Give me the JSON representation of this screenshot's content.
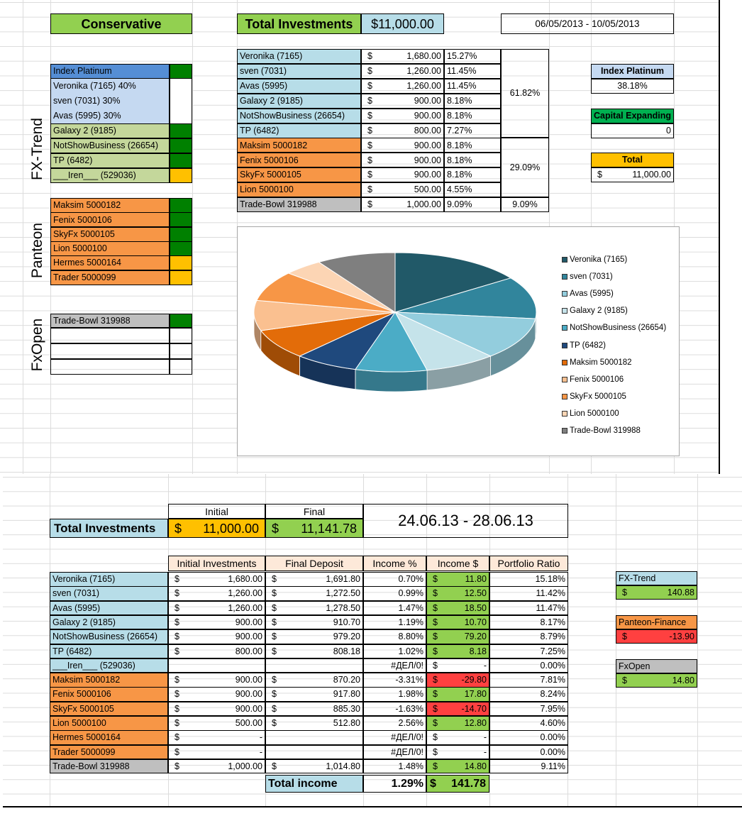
{
  "top": {
    "strategy": "Conservative",
    "total_label": "Total Investments",
    "total_value": "$11,000.00",
    "date_range": "06/05/2013 - 10/05/2013",
    "groups": {
      "fxtrend": "FX-Trend",
      "panteon": "Panteon",
      "fxopen": "FxOpen"
    },
    "fxtrend_list": [
      {
        "name": "Index Platinum",
        "fill": "#558ed5",
        "flag": "#008000"
      },
      {
        "name": "Veronika (7165) 40%",
        "fill": "#c5d9f1",
        "flag": ""
      },
      {
        "name": "sven (7031) 30%",
        "fill": "#c5d9f1",
        "flag": ""
      },
      {
        "name": "Avas (5995) 30%",
        "fill": "#c5d9f1",
        "flag": ""
      },
      {
        "name": "Galaxy 2 (9185)",
        "fill": "#c4d79b",
        "flag": "#008000"
      },
      {
        "name": "NotShowBusiness (26654)",
        "fill": "#c4d79b",
        "flag": "#008000"
      },
      {
        "name": "TP (6482)",
        "fill": "#c4d79b",
        "flag": "#008000"
      },
      {
        "name": "___Iren___ (529036)",
        "fill": "#c4d79b",
        "flag": "#ffc000"
      }
    ],
    "panteon_list": [
      {
        "name": "Maksim 5000182",
        "flag": "#008000"
      },
      {
        "name": "Fenix 5000106",
        "flag": "#008000"
      },
      {
        "name": "SkyFx 5000105",
        "flag": "#008000"
      },
      {
        "name": "Lion 5000100",
        "flag": "#008000"
      },
      {
        "name": "Hermes 5000164",
        "flag": "#ffc000"
      },
      {
        "name": "Trader 5000099",
        "flag": "#ffc000"
      }
    ],
    "fxopen_list": [
      {
        "name": "Trade-Bowl 319988",
        "flag": "#008000"
      }
    ],
    "alloc": [
      {
        "name": "Veronika (7165)",
        "cur": "$",
        "amount": "1,680.00",
        "pct": "15.27%",
        "fill": "#b7dde8"
      },
      {
        "name": "sven (7031)",
        "cur": "$",
        "amount": "1,260.00",
        "pct": "11.45%",
        "fill": "#b7dde8"
      },
      {
        "name": "Avas (5995)",
        "cur": "$",
        "amount": "1,260.00",
        "pct": "11.45%",
        "fill": "#b7dde8"
      },
      {
        "name": "Galaxy 2 (9185)",
        "cur": "$",
        "amount": "900.00",
        "pct": "8.18%",
        "fill": "#b7dde8"
      },
      {
        "name": "NotShowBusiness (26654)",
        "cur": "$",
        "amount": "900.00",
        "pct": "8.18%",
        "fill": "#b7dde8"
      },
      {
        "name": "TP (6482)",
        "cur": "$",
        "amount": "800.00",
        "pct": "7.27%",
        "fill": "#b7dde8"
      },
      {
        "name": "Maksim 5000182",
        "cur": "$",
        "amount": "900.00",
        "pct": "8.18%",
        "fill": "#f79646"
      },
      {
        "name": "Fenix 5000106",
        "cur": "$",
        "amount": "900.00",
        "pct": "8.18%",
        "fill": "#f79646"
      },
      {
        "name": "SkyFx 5000105",
        "cur": "$",
        "amount": "900.00",
        "pct": "8.18%",
        "fill": "#f79646"
      },
      {
        "name": "Lion 5000100",
        "cur": "$",
        "amount": "500.00",
        "pct": "4.55%",
        "fill": "#f79646"
      },
      {
        "name": "Trade-Bowl 319988",
        "cur": "$",
        "amount": "1,000.00",
        "pct": "9.09%",
        "fill": "#bfbfbf"
      }
    ],
    "group_pcts": [
      "61.82%",
      "29.09%",
      "9.09%"
    ],
    "side": {
      "index_label": "Index Platinum",
      "index_value": "38.18%",
      "cap_label": "Capital Expanding",
      "cap_value": "0",
      "total_label": "Total",
      "total_cur": "$",
      "total_value": "11,000.00"
    }
  },
  "chart_data": {
    "type": "pie",
    "title": "",
    "categories": [
      "Veronika (7165)",
      "sven (7031)",
      "Avas (5995)",
      "Galaxy 2 (9185)",
      "NotShowBusiness (26654)",
      "TP (6482)",
      "Maksim 5000182",
      "Fenix 5000106",
      "SkyFx 5000105",
      "Lion 5000100",
      "Trade-Bowl 319988"
    ],
    "values": [
      1680,
      1260,
      1260,
      900,
      900,
      800,
      900,
      900,
      900,
      500,
      1000
    ],
    "colors": [
      "#215968",
      "#31859c",
      "#93cddd",
      "#c5e3ea",
      "#4bacc6",
      "#1f497d",
      "#e36c09",
      "#fac090",
      "#f79646",
      "#fcd5b4",
      "#7f7f7f"
    ],
    "legend": "right",
    "style": "3d"
  },
  "bottom": {
    "col_initial": "Initial",
    "col_final": "Final",
    "total_label": "Total Investments",
    "initial_cur": "$",
    "initial_value": "11,000.00",
    "final_cur": "$",
    "final_value": "11,141.78",
    "date_range": "24.06.13 - 28.06.13",
    "headers": [
      "Initial Investments",
      "Final Deposit",
      "Income %",
      "Income $",
      "Portfolio Ratio"
    ],
    "rows": [
      {
        "name": "Veronika (7165)",
        "fill": "#b7dde8",
        "ic": "$",
        "init": "1,680.00",
        "fc": "$",
        "fin": "1,691.80",
        "pct": "0.70%",
        "dc": "$",
        "inc": "11.80",
        "incfill": "#92d050",
        "ratio": "15.18%"
      },
      {
        "name": "sven (7031)",
        "fill": "#b7dde8",
        "ic": "$",
        "init": "1,260.00",
        "fc": "$",
        "fin": "1,272.50",
        "pct": "0.99%",
        "dc": "$",
        "inc": "12.50",
        "incfill": "#92d050",
        "ratio": "11.42%"
      },
      {
        "name": "Avas (5995)",
        "fill": "#b7dde8",
        "ic": "$",
        "init": "1,260.00",
        "fc": "$",
        "fin": "1,278.50",
        "pct": "1.47%",
        "dc": "$",
        "inc": "18.50",
        "incfill": "#92d050",
        "ratio": "11.47%"
      },
      {
        "name": "Galaxy 2 (9185)",
        "fill": "#b7dde8",
        "ic": "$",
        "init": "900.00",
        "fc": "$",
        "fin": "910.70",
        "pct": "1.19%",
        "dc": "$",
        "inc": "10.70",
        "incfill": "#92d050",
        "ratio": "8.17%"
      },
      {
        "name": "NotShowBusiness (26654)",
        "fill": "#b7dde8",
        "ic": "$",
        "init": "900.00",
        "fc": "$",
        "fin": "979.20",
        "pct": "8.80%",
        "dc": "$",
        "inc": "79.20",
        "incfill": "#92d050",
        "ratio": "8.79%"
      },
      {
        "name": "TP (6482)",
        "fill": "#b7dde8",
        "ic": "$",
        "init": "800.00",
        "fc": "$",
        "fin": "808.18",
        "pct": "1.02%",
        "dc": "$",
        "inc": "8.18",
        "incfill": "#92d050",
        "ratio": "7.25%"
      },
      {
        "name": "___Iren___ (529036)",
        "fill": "#b7dde8",
        "ic": "",
        "init": "",
        "fc": "",
        "fin": "",
        "pct": "#ДЕЛ/0!",
        "dc": "$",
        "inc": "-",
        "incfill": "",
        "ratio": "0.00%"
      },
      {
        "name": "Maksim 5000182",
        "fill": "#f79646",
        "ic": "$",
        "init": "900.00",
        "fc": "$",
        "fin": "870.20",
        "pct": "-3.31%",
        "dc": "$",
        "inc": "-29.80",
        "incfill": "#ff4040",
        "ratio": "7.81%"
      },
      {
        "name": "Fenix 5000106",
        "fill": "#f79646",
        "ic": "$",
        "init": "900.00",
        "fc": "$",
        "fin": "917.80",
        "pct": "1.98%",
        "dc": "$",
        "inc": "17.80",
        "incfill": "#92d050",
        "ratio": "8.24%"
      },
      {
        "name": "SkyFx 5000105",
        "fill": "#f79646",
        "ic": "$",
        "init": "900.00",
        "fc": "$",
        "fin": "885.30",
        "pct": "-1.63%",
        "dc": "$",
        "inc": "-14.70",
        "incfill": "#ff4040",
        "ratio": "7.95%"
      },
      {
        "name": "Lion 5000100",
        "fill": "#f79646",
        "ic": "$",
        "init": "500.00",
        "fc": "$",
        "fin": "512.80",
        "pct": "2.56%",
        "dc": "$",
        "inc": "12.80",
        "incfill": "#92d050",
        "ratio": "4.60%"
      },
      {
        "name": "Hermes 5000164",
        "fill": "#f79646",
        "ic": "$",
        "init": "-",
        "fc": "",
        "fin": "",
        "pct": "#ДЕЛ/0!",
        "dc": "$",
        "inc": "-",
        "incfill": "",
        "ratio": "0.00%"
      },
      {
        "name": "Trader 5000099",
        "fill": "#f79646",
        "ic": "$",
        "init": "-",
        "fc": "",
        "fin": "",
        "pct": "#ДЕЛ/0!",
        "dc": "$",
        "inc": "-",
        "incfill": "",
        "ratio": "0.00%"
      },
      {
        "name": "Trade-Bowl 319988",
        "fill": "#bfbfbf",
        "ic": "$",
        "init": "1,000.00",
        "fc": "$",
        "fin": "1,014.80",
        "pct": "1.48%",
        "dc": "$",
        "inc": "14.80",
        "incfill": "#92d050",
        "ratio": "9.11%"
      }
    ],
    "total_income_label": "Total income",
    "total_income_pct": "1.29%",
    "total_income_cur": "$",
    "total_income_value": "141.78",
    "summary": [
      {
        "label": "FX-Trend",
        "labelfill": "#b7dde8",
        "cur": "$",
        "value": "140.88",
        "valfill": "#92d050"
      },
      {
        "label": "Panteon-Finance",
        "labelfill": "#f79646",
        "cur": "$",
        "value": "-13.90",
        "valfill": "#ff4040"
      },
      {
        "label": "FxOpen",
        "labelfill": "#bfbfbf",
        "cur": "$",
        "value": "14.80",
        "valfill": "#92d050"
      }
    ]
  }
}
